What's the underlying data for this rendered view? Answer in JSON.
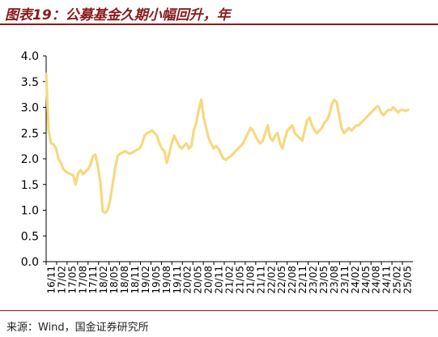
{
  "title": "图表19：公募基金久期小幅回升，年",
  "source": "来源：Wind，国金证券研究所",
  "colors": {
    "line": "#F6D97F",
    "axis": "#000000",
    "title": "#8A1A1A"
  },
  "chart_data": {
    "type": "line",
    "title": "",
    "xlabel": "",
    "ylabel": "",
    "ylim": [
      0,
      4.0
    ],
    "yticks": [
      "0.0",
      "0.5",
      "1.0",
      "1.5",
      "2.0",
      "2.5",
      "3.0",
      "3.5",
      "4.0"
    ],
    "grid": false,
    "legend": "none",
    "x_tick_labels": [
      "16/11",
      "17/02",
      "17/05",
      "17/08",
      "17/11",
      "18/02",
      "18/05",
      "18/08",
      "18/11",
      "19/02",
      "19/05",
      "19/08",
      "19/11",
      "20/02",
      "20/05",
      "20/08",
      "20/11",
      "21/02",
      "21/05",
      "21/08",
      "21/11",
      "22/02",
      "22/05",
      "22/08",
      "22/11",
      "23/02",
      "23/05",
      "23/08",
      "23/11",
      "24/02",
      "24/05",
      "24/08",
      "24/11",
      "25/02",
      "25/05"
    ],
    "series": [
      {
        "values": [
          3.65,
          2.55,
          2.3,
          2.28,
          2.2,
          2.0,
          1.92,
          1.8,
          1.75,
          1.72,
          1.7,
          1.68,
          1.5,
          1.72,
          1.78,
          1.7,
          1.75,
          1.8,
          1.88,
          2.05,
          2.08,
          1.85,
          1.55,
          0.98,
          0.95,
          1.0,
          1.2,
          1.5,
          1.8,
          2.05,
          2.1,
          2.12,
          2.15,
          2.12,
          2.1,
          2.12,
          2.15,
          2.18,
          2.2,
          2.3,
          2.45,
          2.5,
          2.52,
          2.55,
          2.5,
          2.45,
          2.3,
          2.2,
          2.15,
          1.92,
          2.1,
          2.3,
          2.45,
          2.35,
          2.25,
          2.2,
          2.25,
          2.3,
          2.2,
          2.25,
          2.55,
          2.7,
          2.95,
          3.15,
          2.8,
          2.6,
          2.4,
          2.3,
          2.2,
          2.25,
          2.2,
          2.1,
          2.0,
          1.98,
          2.02,
          2.05,
          2.1,
          2.15,
          2.2,
          2.25,
          2.3,
          2.4,
          2.5,
          2.6,
          2.55,
          2.45,
          2.35,
          2.3,
          2.35,
          2.5,
          2.65,
          2.4,
          2.35,
          2.45,
          2.5,
          2.3,
          2.2,
          2.4,
          2.55,
          2.6,
          2.65,
          2.5,
          2.45,
          2.4,
          2.35,
          2.55,
          2.75,
          2.8,
          2.65,
          2.55,
          2.5,
          2.55,
          2.6,
          2.7,
          2.75,
          2.85,
          3.05,
          3.15,
          3.1,
          2.85,
          2.6,
          2.5,
          2.55,
          2.6,
          2.55,
          2.6,
          2.65,
          2.65,
          2.7,
          2.75,
          2.8,
          2.85,
          2.9,
          2.95,
          3.0,
          3.02,
          2.9,
          2.85,
          2.9,
          2.95,
          2.95,
          3.0,
          2.95,
          2.9,
          2.95,
          2.95,
          2.93,
          2.95
        ]
      }
    ]
  }
}
